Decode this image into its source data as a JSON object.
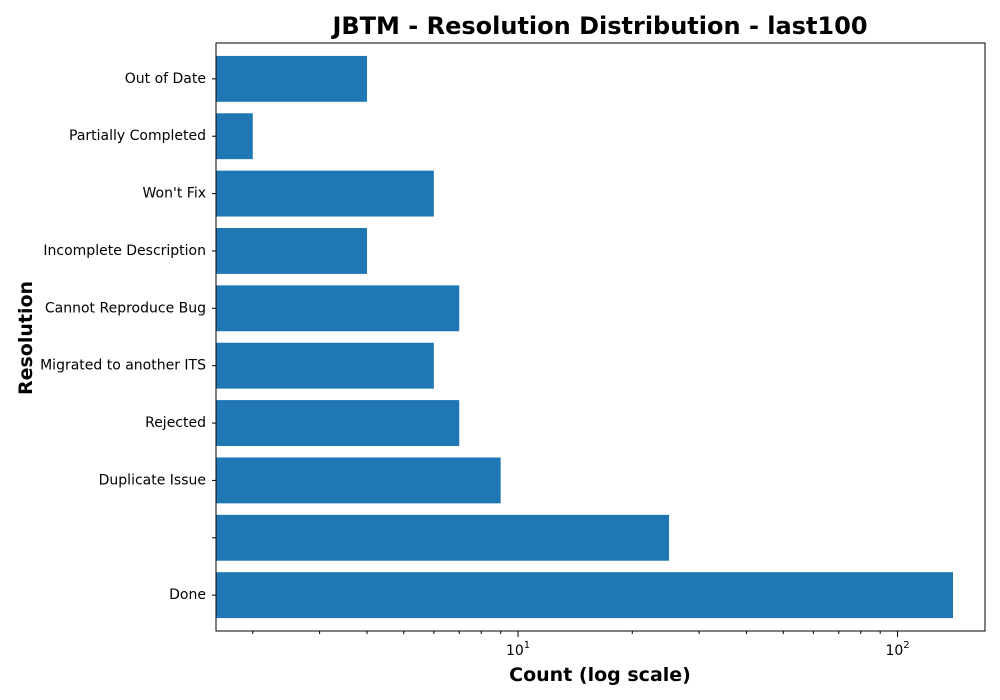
{
  "chart_data": {
    "type": "bar",
    "orientation": "horizontal",
    "title": "JBTM - Resolution Distribution - last100",
    "xlabel": "Count (log scale)",
    "ylabel": "Resolution",
    "xscale": "log",
    "xlim": [
      1.6,
      170
    ],
    "categories": [
      "Done",
      "",
      "Duplicate Issue",
      "Rejected",
      "Migrated to another ITS",
      "Cannot Reproduce Bug",
      "Incomplete Description",
      "Won't Fix",
      "Partially Completed",
      "Out of Date"
    ],
    "values": [
      140,
      25,
      9,
      7,
      6,
      7,
      4,
      6,
      2,
      4
    ],
    "x_ticks": [
      {
        "value": 10,
        "base": "10",
        "exp": "1"
      },
      {
        "value": 100,
        "base": "10",
        "exp": "2"
      }
    ],
    "grid": false,
    "color": "#1f77b4"
  }
}
